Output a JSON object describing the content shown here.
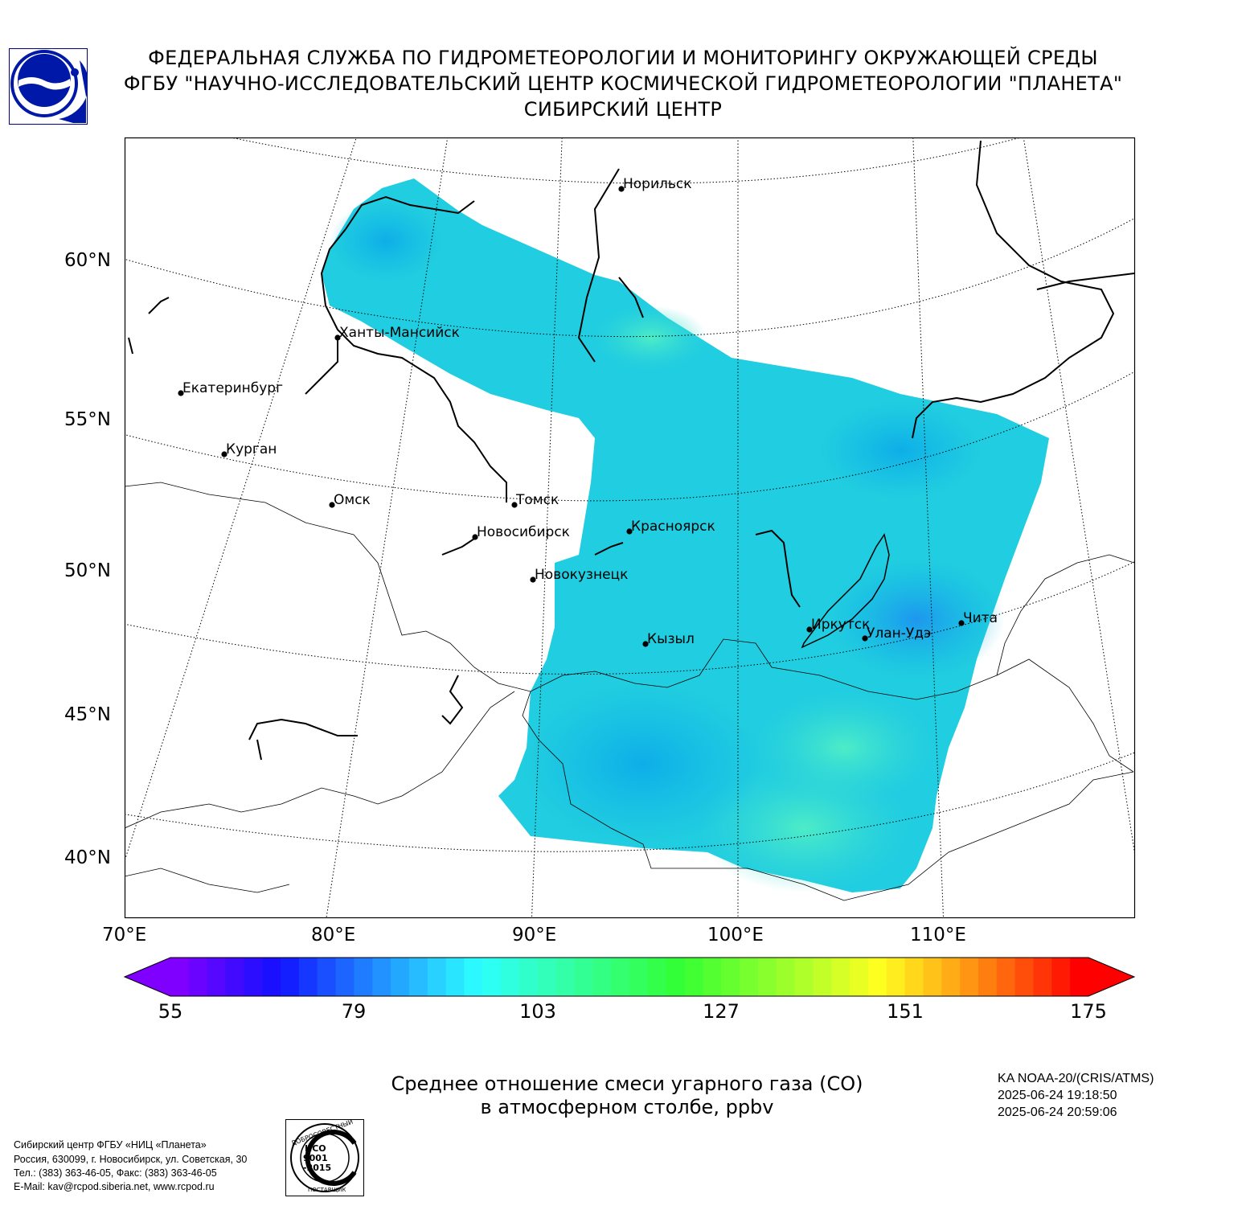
{
  "header": {
    "line1": "ФЕДЕРАЛЬНАЯ СЛУЖБА ПО ГИДРОМЕТЕОРОЛОГИИ И МОНИТОРИНГУ ОКРУЖАЮЩЕЙ СРЕДЫ",
    "line2": "ФГБУ \"НАУЧНО-ИССЛЕДОВАТЕЛЬСКИЙ ЦЕНТР КОСМИЧЕСКОЙ ГИДРОМЕТЕОРОЛОГИИ \"ПЛАНЕТА\"",
    "line3": "СИБИРСКИЙ ЦЕНТР"
  },
  "map": {
    "lat_labels": [
      "60°N",
      "55°N",
      "50°N",
      "45°N",
      "40°N"
    ],
    "lon_labels": [
      "70°E",
      "80°E",
      "90°E",
      "100°E",
      "110°E"
    ],
    "cities": [
      {
        "name": "Норильск"
      },
      {
        "name": "Ханты-Мансийск"
      },
      {
        "name": "Екатеринбург"
      },
      {
        "name": "Курган"
      },
      {
        "name": "Омск"
      },
      {
        "name": "Томск"
      },
      {
        "name": "Новосибирск"
      },
      {
        "name": "Красноярск"
      },
      {
        "name": "Новокузнецк"
      },
      {
        "name": "Кызыл"
      },
      {
        "name": "Иркутск"
      },
      {
        "name": "Улан-Удэ"
      },
      {
        "name": "Чита"
      }
    ]
  },
  "colorbar": {
    "ticks": [
      "55",
      "79",
      "103",
      "127",
      "151",
      "175"
    ]
  },
  "caption": {
    "line1": "Среднее отношение смеси угарного газа (CO)",
    "line2": "в атмосферном столбе, ppbv"
  },
  "satellite": {
    "name": "KA NOAA-20/(CRIS/ATMS)",
    "start": "2025-06-24 19:18:50",
    "end": "2025-06-24 20:59:06"
  },
  "footer": {
    "line1": "Сибирский центр ФГБУ «НИЦ «Планета»",
    "line2": "Россия, 630099, г. Новосибирск, ул. Советская, 30",
    "line3": "Тел.: (383) 363-46-05, Факс: (383) 363-46-05",
    "line4": "E-Mail: kav@rcpod.siberia.net, www.rcpod.ru"
  },
  "stamp": {
    "top_text": "ДОБРОСОВЕСТНЫЙ",
    "center_text": "ИСО 9001 -2015",
    "bottom_text": "ПОСТАВЩИК"
  }
}
